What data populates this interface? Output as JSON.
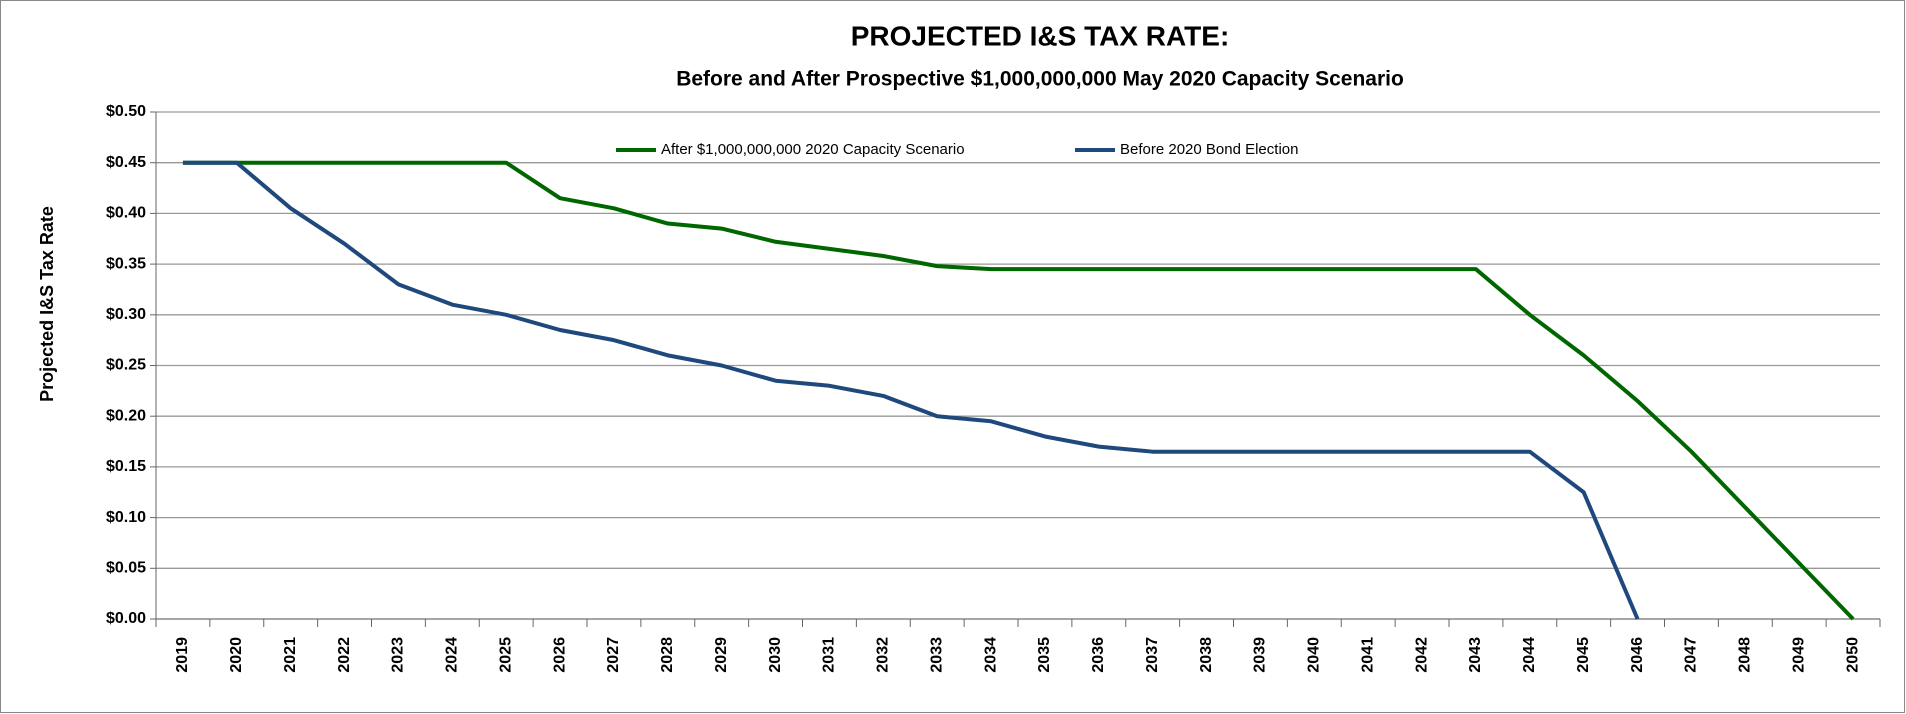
{
  "chart_data": {
    "type": "line",
    "title": "PROJECTED I&S TAX RATE:",
    "subtitle": "Before and After Prospective $1,000,000,000 May 2020 Capacity Scenario",
    "y_label": "Projected I&S Tax Rate",
    "categories": [
      "2019",
      "2020",
      "2021",
      "2022",
      "2023",
      "2024",
      "2025",
      "2026",
      "2027",
      "2028",
      "2029",
      "2030",
      "2031",
      "2032",
      "2033",
      "2034",
      "2035",
      "2036",
      "2037",
      "2038",
      "2039",
      "2040",
      "2041",
      "2042",
      "2043",
      "2044",
      "2045",
      "2046",
      "2047",
      "2048",
      "2049",
      "2050"
    ],
    "series": [
      {
        "name": "After $1,000,000,000 2020 Capacity Scenario",
        "color": "#006600",
        "values": [
          0.45,
          0.45,
          0.45,
          0.45,
          0.45,
          0.45,
          0.45,
          0.415,
          0.405,
          0.39,
          0.385,
          0.372,
          0.365,
          0.358,
          0.348,
          0.345,
          0.345,
          0.345,
          0.345,
          0.345,
          0.345,
          0.345,
          0.345,
          0.345,
          0.345,
          0.3,
          0.26,
          0.215,
          0.165,
          0.11,
          0.055,
          0
        ]
      },
      {
        "name": "Before 2020 Bond Election",
        "color": "#1f497d",
        "values": [
          0.45,
          0.45,
          0.405,
          0.37,
          0.33,
          0.31,
          0.3,
          0.285,
          0.275,
          0.26,
          0.25,
          0.235,
          0.23,
          0.22,
          0.2,
          0.195,
          0.18,
          0.17,
          0.165,
          0.165,
          0.165,
          0.165,
          0.165,
          0.165,
          0.165,
          0.165,
          0.125,
          0,
          null,
          null,
          null,
          null
        ]
      }
    ],
    "ylim": [
      0,
      0.5
    ],
    "yticks": [
      {
        "value": 0,
        "label": "$0.00"
      },
      {
        "value": 0.05,
        "label": "$0.05"
      },
      {
        "value": 0.1,
        "label": "$0.10"
      },
      {
        "value": 0.15,
        "label": "$0.15"
      },
      {
        "value": 0.2,
        "label": "$0.20"
      },
      {
        "value": 0.25,
        "label": "$0.25"
      },
      {
        "value": 0.3,
        "label": "$0.30"
      },
      {
        "value": 0.35,
        "label": "$0.35"
      },
      {
        "value": 0.4,
        "label": "$0.40"
      },
      {
        "value": 0.45,
        "label": "$0.45"
      },
      {
        "value": 0.5,
        "label": "$0.50"
      }
    ],
    "grid": true,
    "legend": "top"
  }
}
